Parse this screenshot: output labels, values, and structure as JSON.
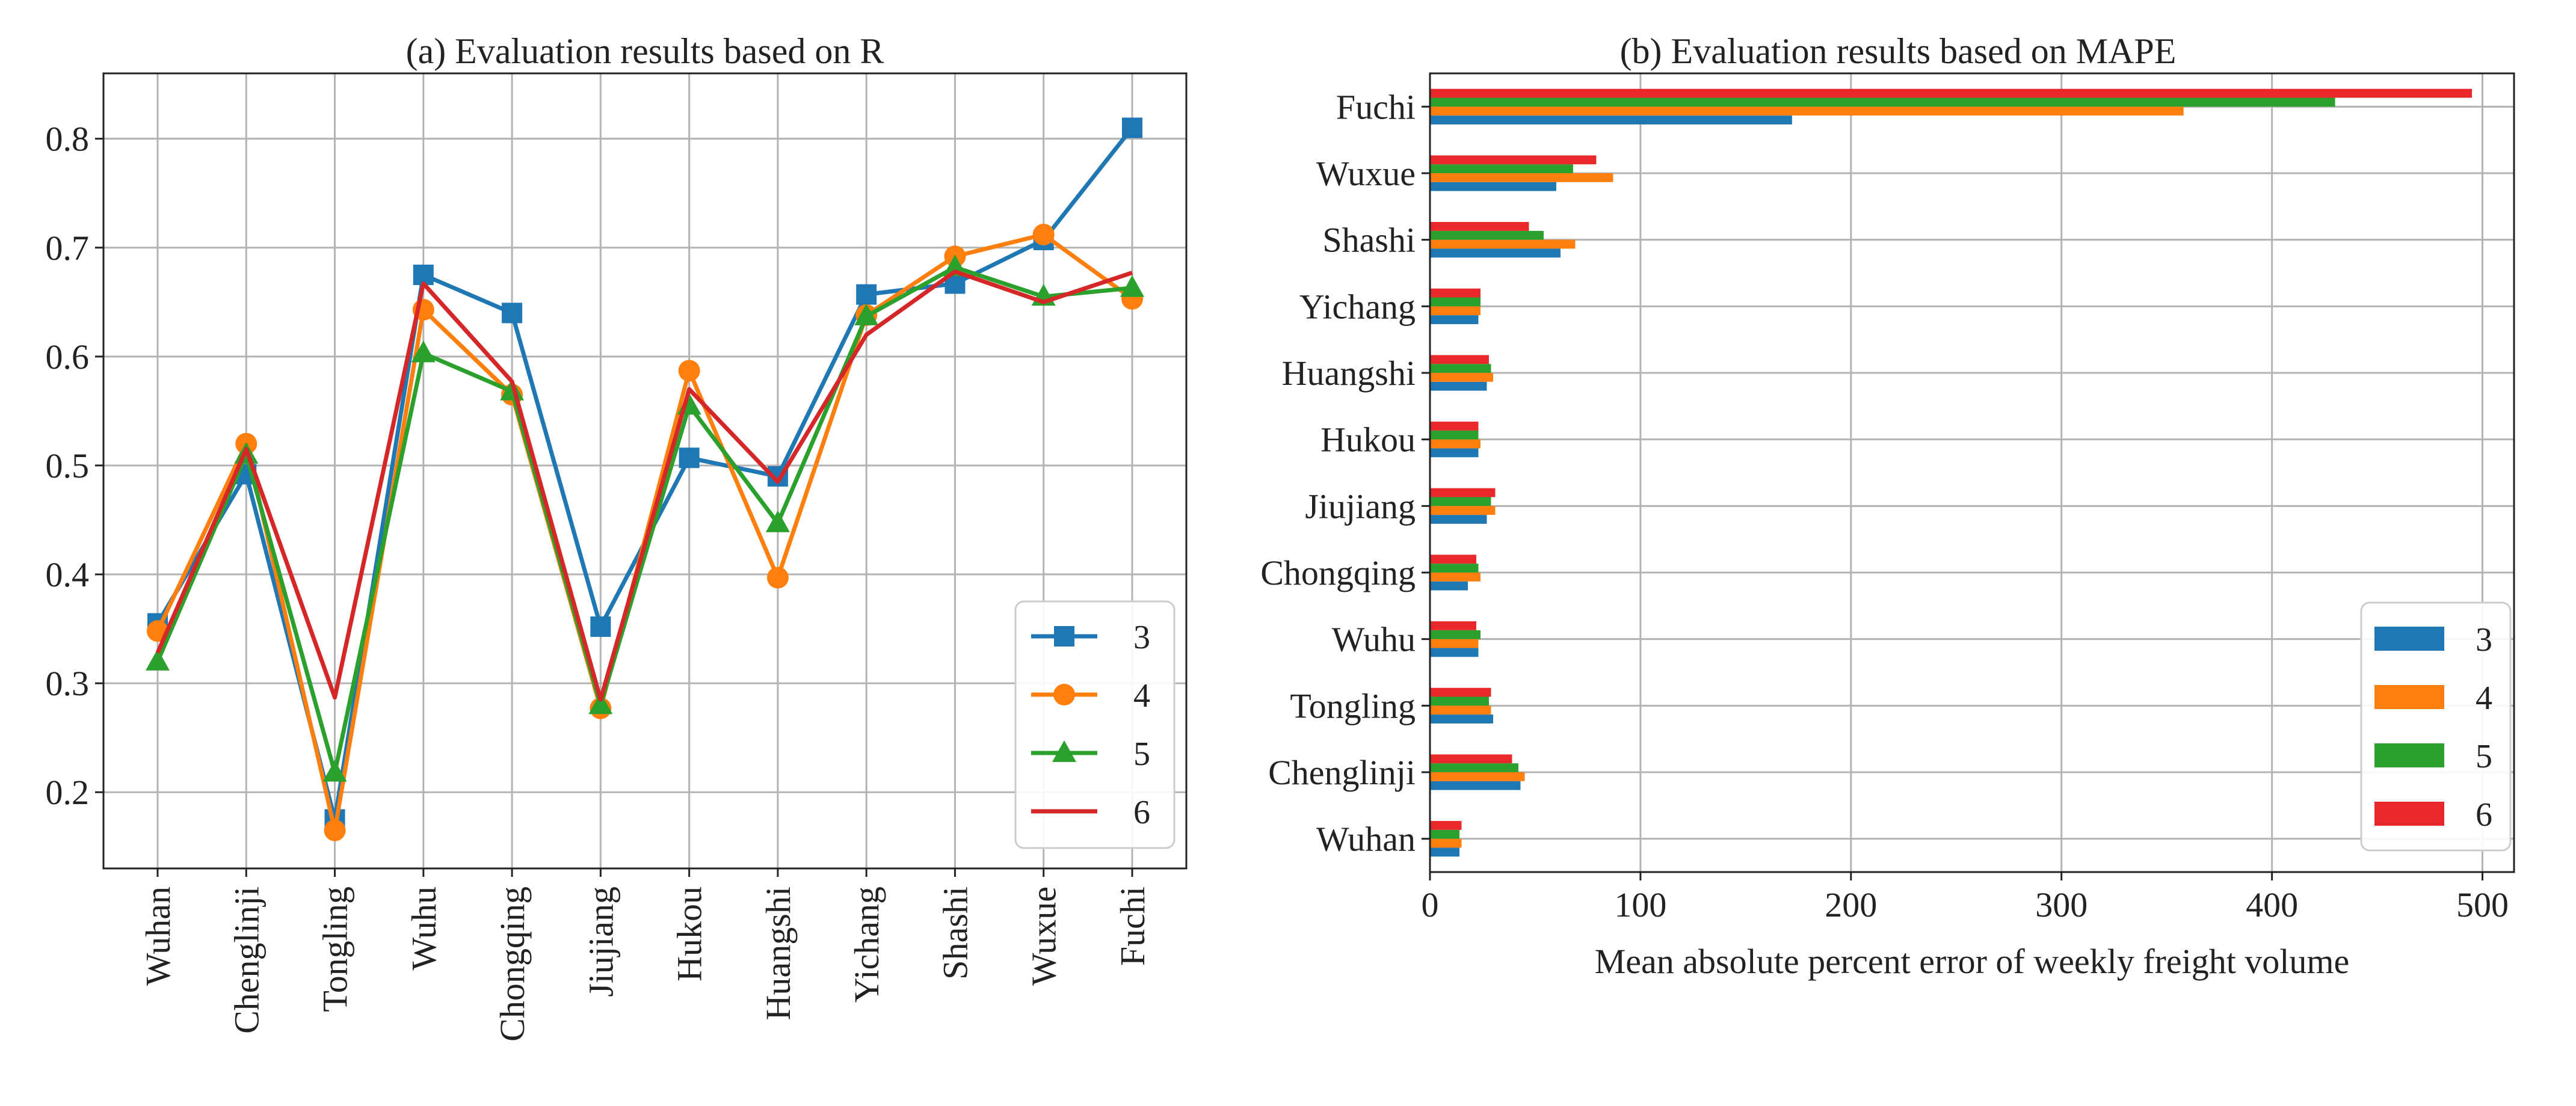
{
  "chart_data": [
    {
      "type": "line",
      "title": "(a) Evaluation results based on R",
      "xlabel": "",
      "ylabel": "",
      "categories": [
        "Wuhan",
        "Chenglinji",
        "Tongling",
        "Wuhu",
        "Chongqing",
        "Jiujiang",
        "Hukou",
        "Huangshi",
        "Yichang",
        "Shashi",
        "Wuxue",
        "Fuchi"
      ],
      "ylim": [
        0.13,
        0.86
      ],
      "yticks": [
        0.2,
        0.3,
        0.4,
        0.5,
        0.6,
        0.7,
        0.8
      ],
      "ytick_labels": [
        "0.2",
        "0.3",
        "0.4",
        "0.5",
        "0.6",
        "0.7",
        "0.8"
      ],
      "grid": true,
      "legend": "lower-right",
      "series": [
        {
          "name": "3",
          "color": "#1f77b4",
          "marker": "square",
          "values": [
            0.355,
            0.492,
            0.175,
            0.675,
            0.64,
            0.352,
            0.507,
            0.49,
            0.657,
            0.667,
            0.707,
            0.81
          ]
        },
        {
          "name": "4",
          "color": "#ff7f0e",
          "marker": "circle",
          "values": [
            0.348,
            0.52,
            0.165,
            0.643,
            0.565,
            0.277,
            0.587,
            0.397,
            0.638,
            0.692,
            0.712,
            0.653
          ]
        },
        {
          "name": "5",
          "color": "#2ca02c",
          "marker": "triangle",
          "values": [
            0.32,
            0.51,
            0.218,
            0.603,
            0.568,
            0.28,
            0.555,
            0.447,
            0.637,
            0.682,
            0.655,
            0.663
          ]
        },
        {
          "name": "6",
          "color": "#d62728",
          "marker": "none",
          "values": [
            0.328,
            0.515,
            0.287,
            0.667,
            0.577,
            0.285,
            0.57,
            0.485,
            0.62,
            0.678,
            0.65,
            0.677
          ]
        }
      ]
    },
    {
      "type": "bar",
      "orientation": "horizontal",
      "title": "(b) Evaluation results based on MAPE",
      "xlabel": "Mean absolute percent  error of weekly freight volume",
      "ylabel": "",
      "categories": [
        "Wuhan",
        "Chenglinji",
        "Tongling",
        "Wuhu",
        "Chongqing",
        "Jiujiang",
        "Hukou",
        "Huangshi",
        "Yichang",
        "Shashi",
        "Wuxue",
        "Fuchi"
      ],
      "xlim": [
        0,
        515
      ],
      "xticks": [
        0,
        100,
        200,
        300,
        400,
        500
      ],
      "xtick_labels": [
        "0",
        "100",
        "200",
        "300",
        "400",
        "500"
      ],
      "grid": true,
      "legend": "lower-right",
      "series": [
        {
          "name": "3",
          "color": "#1f77b4",
          "values": [
            14,
            43,
            30,
            23,
            18,
            27,
            23,
            27,
            23,
            62,
            60,
            172
          ]
        },
        {
          "name": "4",
          "color": "#ff7f0e",
          "values": [
            15,
            45,
            29,
            23,
            24,
            31,
            24,
            30,
            24,
            69,
            87,
            358
          ]
        },
        {
          "name": "5",
          "color": "#2ca02c",
          "values": [
            14,
            42,
            28,
            24,
            23,
            29,
            23,
            29,
            24,
            54,
            68,
            430
          ]
        },
        {
          "name": "6",
          "color": "#e8282b",
          "values": [
            15,
            39,
            29,
            22,
            22,
            31,
            23,
            28,
            24,
            47,
            79,
            495
          ]
        }
      ]
    }
  ]
}
